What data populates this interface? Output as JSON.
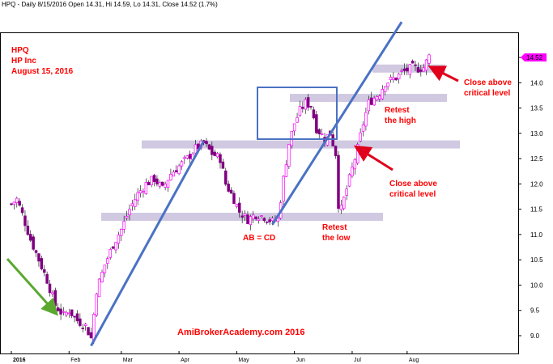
{
  "header": {
    "title": "HPQ - Daily 8/15/2016 Open 14.31, Hi 14.59, Lo 14.31, Close 14.52 (1.7%)"
  },
  "ticker": {
    "symbol": "HPQ",
    "company": "HP Inc",
    "date": "August 15, 2016"
  },
  "annotations": {
    "close_above_1_line1": "Close above",
    "close_above_1_line2": "critical level",
    "retest_high_line1": "Retest",
    "retest_high_line2": "the high",
    "close_above_2_line1": "Close above",
    "close_above_2_line2": "critical level",
    "abcd": "AB = CD",
    "retest_low_line1": "Retest",
    "retest_low_line2": "the low",
    "watermark": "AmiBrokerAcademy.com  2016"
  },
  "colors": {
    "up": "#ff00ff",
    "down": "#800080",
    "zone": "#c8bfdc",
    "trendline": "#4a72c4",
    "arrow_red": "#e0001b",
    "arrow_green": "#5aa830",
    "annotation_text": "#ff0000",
    "price_tag": "#ff00ff"
  },
  "chart_data": {
    "type": "candlestick",
    "title": "HPQ - Daily 8/15/2016",
    "xlabel": "",
    "ylabel": "",
    "ylim": [
      8.75,
      14.85
    ],
    "ytick_labels": [
      "9.0",
      "9.5",
      "10.0",
      "10.5",
      "11.0",
      "11.5",
      "12.0",
      "12.5",
      "13.0",
      "13.5",
      "14.0",
      "14.5"
    ],
    "x_ticks": [
      {
        "label": "2016",
        "day": 1
      },
      {
        "label": "Feb",
        "day": 22
      },
      {
        "label": "Mar",
        "day": 41
      },
      {
        "label": "Apr",
        "day": 62
      },
      {
        "label": "May",
        "day": 83
      },
      {
        "label": "Jun",
        "day": 104
      },
      {
        "label": "Jul",
        "day": 125
      },
      {
        "label": "Aug",
        "day": 145
      }
    ],
    "last_close_label": "14.52",
    "ohlc_path": [
      [
        1,
        11.6
      ],
      [
        3,
        11.7
      ],
      [
        5,
        11.4
      ],
      [
        8,
        10.9
      ],
      [
        11,
        10.5
      ],
      [
        14,
        10.1
      ],
      [
        17,
        9.6
      ],
      [
        20,
        9.4
      ],
      [
        22,
        9.5
      ],
      [
        25,
        9.3
      ],
      [
        28,
        9.2
      ],
      [
        30,
        8.95
      ],
      [
        32,
        9.9
      ],
      [
        35,
        10.4
      ],
      [
        38,
        10.8
      ],
      [
        41,
        11.1
      ],
      [
        44,
        11.5
      ],
      [
        47,
        11.8
      ],
      [
        50,
        12.0
      ],
      [
        53,
        12.1
      ],
      [
        56,
        11.9
      ],
      [
        59,
        12.2
      ],
      [
        62,
        12.35
      ],
      [
        65,
        12.5
      ],
      [
        68,
        12.7
      ],
      [
        71,
        12.8
      ],
      [
        74,
        12.6
      ],
      [
        77,
        12.5
      ],
      [
        79,
        12.0
      ],
      [
        82,
        11.7
      ],
      [
        84,
        11.45
      ],
      [
        87,
        11.3
      ],
      [
        90,
        11.4
      ],
      [
        93,
        11.35
      ],
      [
        96,
        11.25
      ],
      [
        98,
        11.3
      ],
      [
        100,
        12.1
      ],
      [
        102,
        12.8
      ],
      [
        104,
        13.2
      ],
      [
        106,
        13.45
      ],
      [
        108,
        13.6
      ],
      [
        110,
        13.55
      ],
      [
        112,
        13.1
      ],
      [
        115,
        12.9
      ],
      [
        117,
        13.0
      ],
      [
        119,
        12.6
      ],
      [
        120,
        11.6
      ],
      [
        121,
        11.5
      ],
      [
        123,
        11.9
      ],
      [
        125,
        12.3
      ],
      [
        127,
        12.7
      ],
      [
        129,
        13.2
      ],
      [
        131,
        13.6
      ],
      [
        133,
        13.7
      ],
      [
        135,
        13.8
      ],
      [
        137,
        14.0
      ],
      [
        139,
        14.05
      ],
      [
        141,
        14.1
      ],
      [
        143,
        14.2
      ],
      [
        145,
        14.25
      ],
      [
        147,
        14.3
      ],
      [
        149,
        14.28
      ],
      [
        151,
        14.3
      ],
      [
        153,
        14.52
      ]
    ],
    "support_resistance_zones": [
      {
        "level": 11.35,
        "label": ""
      },
      {
        "level": 12.78,
        "label": ""
      },
      {
        "level": 13.7,
        "label": ""
      },
      {
        "level": 14.28,
        "label": ""
      }
    ],
    "trendlines": [
      {
        "from": [
          30,
          8.8
        ],
        "to": [
          71,
          12.85
        ]
      },
      {
        "from": [
          96,
          11.2
        ],
        "to": [
          143,
          15.2
        ]
      }
    ]
  }
}
